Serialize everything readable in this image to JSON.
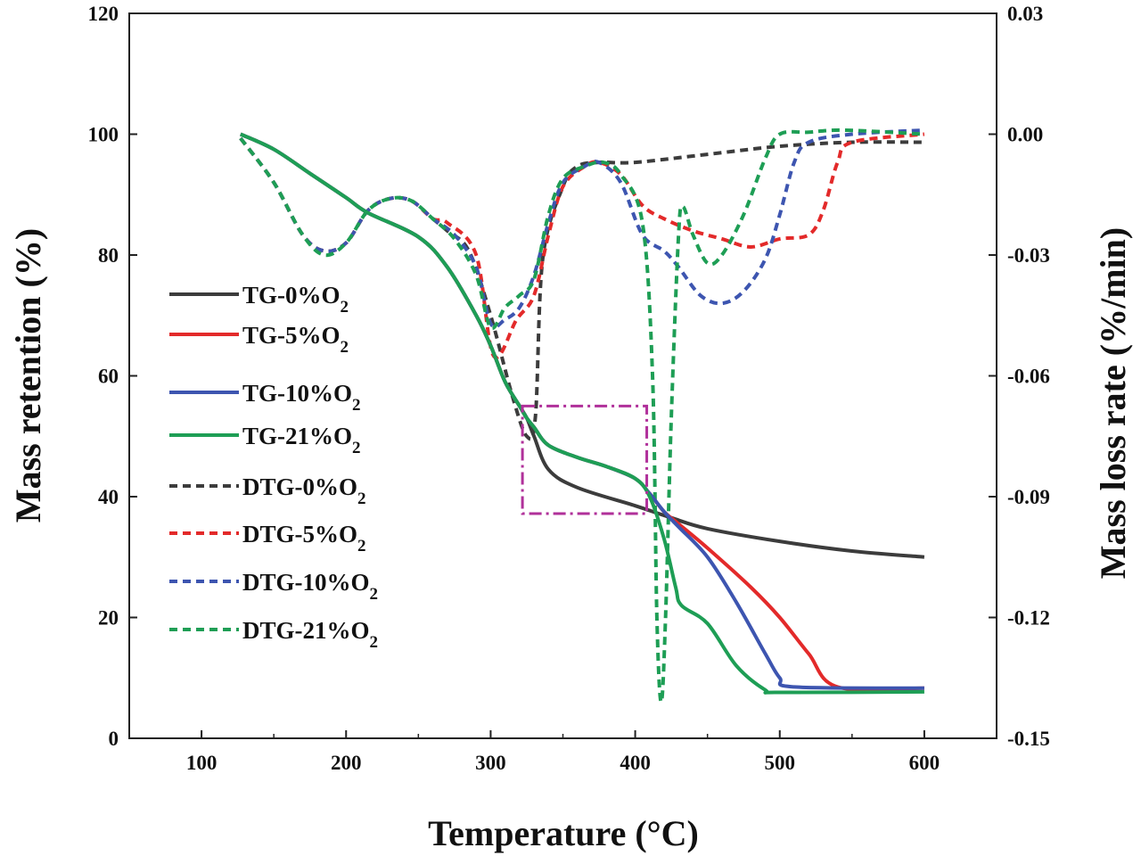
{
  "chart_data": {
    "type": "line",
    "xlabel": "Temperature (°C)",
    "ylabel_left": "Mass retention (%)",
    "ylabel_right": "Mass loss rate (%/min)",
    "xlim": [
      50,
      650
    ],
    "ylim_left": [
      0,
      120
    ],
    "ylim_right": [
      -0.15,
      0.03
    ],
    "x_ticks": [
      "100",
      "200",
      "300",
      "400",
      "500",
      "600"
    ],
    "y_left_ticks": [
      "0",
      "20",
      "40",
      "60",
      "80",
      "100",
      "120"
    ],
    "y_right_ticks": [
      "-0.15",
      "-0.12",
      "-0.09",
      "-0.06",
      "-0.03",
      "0.00",
      "0.03"
    ],
    "grid": false,
    "legend_position": "left",
    "highlight_box": {
      "x": [
        322,
        408
      ],
      "y_left": [
        37.2,
        55
      ],
      "color": "#b0309a"
    },
    "series": [
      {
        "name": "TG-0%O2",
        "axis": "left",
        "style": "solid",
        "color": "#3c3c3c",
        "points": [
          [
            127,
            100
          ],
          [
            150,
            97.5
          ],
          [
            175,
            93.5
          ],
          [
            200,
            89.5
          ],
          [
            215,
            87
          ],
          [
            250,
            83
          ],
          [
            270,
            78
          ],
          [
            290,
            70
          ],
          [
            300,
            65
          ],
          [
            310,
            59
          ],
          [
            320,
            55
          ],
          [
            325,
            53
          ],
          [
            330,
            50
          ],
          [
            340,
            44.5
          ],
          [
            360,
            41.5
          ],
          [
            400,
            38.5
          ],
          [
            425,
            36.5
          ],
          [
            450,
            34.7
          ],
          [
            500,
            32.6
          ],
          [
            550,
            31
          ],
          [
            600,
            30
          ]
        ]
      },
      {
        "name": "TG-5%O2",
        "axis": "left",
        "style": "solid",
        "color": "#e32a2a",
        "points": [
          [
            127,
            100
          ],
          [
            150,
            97.5
          ],
          [
            175,
            93.5
          ],
          [
            200,
            89.5
          ],
          [
            215,
            87
          ],
          [
            250,
            83
          ],
          [
            270,
            78
          ],
          [
            290,
            70
          ],
          [
            300,
            65
          ],
          [
            310,
            59
          ],
          [
            320,
            55
          ],
          [
            325,
            53
          ],
          [
            330,
            51.5
          ],
          [
            340,
            48.5
          ],
          [
            360,
            46.5
          ],
          [
            380,
            45
          ],
          [
            400,
            43
          ],
          [
            410,
            40.5
          ],
          [
            420,
            37.5
          ],
          [
            430,
            35.5
          ],
          [
            450,
            31.5
          ],
          [
            480,
            25
          ],
          [
            500,
            20
          ],
          [
            520,
            14
          ],
          [
            540,
            8.5
          ],
          [
            600,
            8.3
          ]
        ]
      },
      {
        "name": "TG-10%O2",
        "axis": "left",
        "style": "solid",
        "color": "#3d55b0",
        "points": [
          [
            127,
            100
          ],
          [
            150,
            97.5
          ],
          [
            175,
            93.5
          ],
          [
            200,
            89.5
          ],
          [
            215,
            87
          ],
          [
            250,
            83
          ],
          [
            270,
            78
          ],
          [
            290,
            70
          ],
          [
            300,
            65
          ],
          [
            310,
            59
          ],
          [
            320,
            55
          ],
          [
            325,
            53
          ],
          [
            330,
            51.5
          ],
          [
            340,
            48.5
          ],
          [
            360,
            46.5
          ],
          [
            380,
            45
          ],
          [
            400,
            43
          ],
          [
            410,
            40.5
          ],
          [
            420,
            37.5
          ],
          [
            430,
            35
          ],
          [
            450,
            30
          ],
          [
            470,
            22.5
          ],
          [
            490,
            14
          ],
          [
            500,
            10
          ],
          [
            510,
            8.5
          ],
          [
            600,
            8.3
          ]
        ]
      },
      {
        "name": "TG-21%O2",
        "axis": "left",
        "style": "solid",
        "color": "#1e9e55",
        "points": [
          [
            127,
            100
          ],
          [
            150,
            97.5
          ],
          [
            175,
            93.5
          ],
          [
            200,
            89.5
          ],
          [
            215,
            87
          ],
          [
            250,
            83
          ],
          [
            270,
            78
          ],
          [
            290,
            70
          ],
          [
            300,
            65
          ],
          [
            310,
            59
          ],
          [
            320,
            55
          ],
          [
            325,
            53
          ],
          [
            330,
            51.5
          ],
          [
            340,
            48.5
          ],
          [
            360,
            46.5
          ],
          [
            380,
            45
          ],
          [
            400,
            43
          ],
          [
            410,
            40
          ],
          [
            420,
            33
          ],
          [
            428,
            25
          ],
          [
            432,
            22
          ],
          [
            450,
            19
          ],
          [
            470,
            12
          ],
          [
            490,
            8
          ],
          [
            500,
            7.6
          ],
          [
            600,
            7.7
          ]
        ]
      },
      {
        "name": "DTG-0%O2",
        "axis": "right",
        "style": "dashed",
        "color": "#3c3c3c",
        "points": [
          [
            127,
            -0.001
          ],
          [
            150,
            -0.012
          ],
          [
            170,
            -0.025
          ],
          [
            185,
            -0.029
          ],
          [
            200,
            -0.027
          ],
          [
            215,
            -0.019
          ],
          [
            230,
            -0.016
          ],
          [
            245,
            -0.0165
          ],
          [
            260,
            -0.021
          ],
          [
            270,
            -0.024
          ],
          [
            285,
            -0.029
          ],
          [
            300,
            -0.045
          ],
          [
            315,
            -0.065
          ],
          [
            325,
            -0.075
          ],
          [
            331,
            -0.07
          ],
          [
            336,
            -0.031
          ],
          [
            350,
            -0.013
          ],
          [
            360,
            -0.008
          ],
          [
            375,
            -0.007
          ],
          [
            400,
            -0.007
          ],
          [
            450,
            -0.005
          ],
          [
            500,
            -0.003
          ],
          [
            550,
            -0.002
          ],
          [
            600,
            -0.002
          ]
        ]
      },
      {
        "name": "DTG-5%O2",
        "axis": "right",
        "style": "dashed",
        "color": "#e32a2a",
        "points": [
          [
            127,
            -0.001
          ],
          [
            150,
            -0.012
          ],
          [
            170,
            -0.025
          ],
          [
            185,
            -0.029
          ],
          [
            200,
            -0.027
          ],
          [
            215,
            -0.019
          ],
          [
            230,
            -0.016
          ],
          [
            245,
            -0.0165
          ],
          [
            260,
            -0.021
          ],
          [
            270,
            -0.022
          ],
          [
            290,
            -0.03
          ],
          [
            302,
            -0.055
          ],
          [
            318,
            -0.046
          ],
          [
            330,
            -0.04
          ],
          [
            340,
            -0.025
          ],
          [
            350,
            -0.013
          ],
          [
            365,
            -0.008
          ],
          [
            375,
            -0.007
          ],
          [
            390,
            -0.01
          ],
          [
            405,
            -0.0177
          ],
          [
            420,
            -0.021
          ],
          [
            440,
            -0.024
          ],
          [
            460,
            -0.026
          ],
          [
            480,
            -0.028
          ],
          [
            500,
            -0.026
          ],
          [
            520,
            -0.025
          ],
          [
            530,
            -0.019
          ],
          [
            540,
            -0.007
          ],
          [
            550,
            -0.002
          ],
          [
            600,
            0
          ]
        ]
      },
      {
        "name": "DTG-10%O2",
        "axis": "right",
        "style": "dashed",
        "color": "#3d55b0",
        "points": [
          [
            127,
            -0.001
          ],
          [
            150,
            -0.012
          ],
          [
            170,
            -0.025
          ],
          [
            185,
            -0.029
          ],
          [
            200,
            -0.027
          ],
          [
            215,
            -0.019
          ],
          [
            230,
            -0.016
          ],
          [
            245,
            -0.0165
          ],
          [
            260,
            -0.021
          ],
          [
            275,
            -0.025
          ],
          [
            290,
            -0.033
          ],
          [
            300,
            -0.047
          ],
          [
            310,
            -0.046
          ],
          [
            320,
            -0.043
          ],
          [
            330,
            -0.035
          ],
          [
            340,
            -0.022
          ],
          [
            350,
            -0.012
          ],
          [
            365,
            -0.008
          ],
          [
            375,
            -0.007
          ],
          [
            390,
            -0.012
          ],
          [
            405,
            -0.025
          ],
          [
            420,
            -0.029
          ],
          [
            430,
            -0.033
          ],
          [
            445,
            -0.04
          ],
          [
            460,
            -0.042
          ],
          [
            475,
            -0.039
          ],
          [
            490,
            -0.031
          ],
          [
            500,
            -0.02
          ],
          [
            510,
            -0.007
          ],
          [
            520,
            -0.002
          ],
          [
            550,
            0
          ],
          [
            600,
            0.001
          ]
        ]
      },
      {
        "name": "DTG-21%O2",
        "axis": "right",
        "style": "dashed",
        "color": "#1e9e55",
        "points": [
          [
            127,
            -0.001
          ],
          [
            150,
            -0.012
          ],
          [
            170,
            -0.025
          ],
          [
            185,
            -0.03
          ],
          [
            200,
            -0.027
          ],
          [
            215,
            -0.019
          ],
          [
            230,
            -0.016
          ],
          [
            245,
            -0.0165
          ],
          [
            260,
            -0.021
          ],
          [
            275,
            -0.026
          ],
          [
            290,
            -0.035
          ],
          [
            300,
            -0.048
          ],
          [
            310,
            -0.043
          ],
          [
            320,
            -0.04
          ],
          [
            330,
            -0.036
          ],
          [
            340,
            -0.02
          ],
          [
            350,
            -0.011
          ],
          [
            365,
            -0.008
          ],
          [
            378,
            -0.007
          ],
          [
            390,
            -0.01
          ],
          [
            405,
            -0.022
          ],
          [
            412,
            -0.06
          ],
          [
            415,
            -0.12
          ],
          [
            418,
            -0.141
          ],
          [
            421,
            -0.12
          ],
          [
            425,
            -0.07
          ],
          [
            430,
            -0.025
          ],
          [
            433,
            -0.018
          ],
          [
            440,
            -0.025
          ],
          [
            450,
            -0.032
          ],
          [
            460,
            -0.03
          ],
          [
            475,
            -0.02
          ],
          [
            490,
            -0.006
          ],
          [
            500,
            0
          ],
          [
            520,
            0.0005
          ],
          [
            545,
            0.001
          ],
          [
            600,
            0
          ]
        ]
      }
    ]
  }
}
